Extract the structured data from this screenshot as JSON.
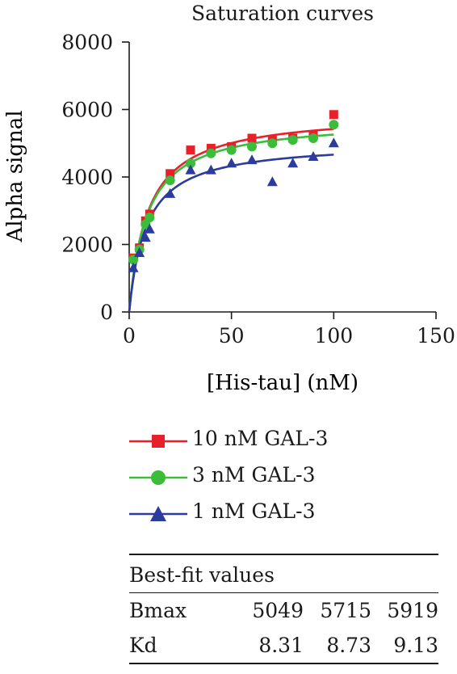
{
  "chart_data": {
    "type": "scatter",
    "title": "Saturation curves",
    "xlabel": "[His-tau] (nM)",
    "ylabel": "Alpha signal",
    "xlim": [
      0,
      150
    ],
    "ylim": [
      0,
      8000
    ],
    "xticks": [
      "0",
      "50",
      "100",
      "150"
    ],
    "yticks": [
      "0",
      "2000",
      "4000",
      "6000",
      "8000"
    ],
    "grid": false,
    "legend_position": "below",
    "series": [
      {
        "name": "10 nM GAL-3",
        "color": "#e8202a",
        "marker": "square",
        "x": [
          2,
          5,
          8,
          10,
          20,
          30,
          40,
          50,
          60,
          70,
          80,
          90,
          100
        ],
        "y": [
          1600,
          1900,
          2700,
          2900,
          4100,
          4800,
          4850,
          4900,
          5150,
          5100,
          5150,
          5250,
          5850
        ],
        "fit": {
          "Bmax": 5919,
          "Kd": 9.13
        }
      },
      {
        "name": "3 nM GAL-3",
        "color": "#3bbd3b",
        "marker": "circle",
        "x": [
          2,
          5,
          8,
          10,
          20,
          30,
          40,
          50,
          60,
          70,
          80,
          90,
          100
        ],
        "y": [
          1550,
          1850,
          2600,
          2800,
          3900,
          4400,
          4700,
          4800,
          4900,
          5000,
          5100,
          5150,
          5550
        ],
        "fit": {
          "Bmax": 5715,
          "Kd": 8.73
        }
      },
      {
        "name": "1 nM GAL-3",
        "color": "#2b3b9e",
        "marker": "triangle",
        "x": [
          2,
          5,
          8,
          10,
          20,
          30,
          40,
          50,
          60,
          70,
          80,
          90,
          100
        ],
        "y": [
          1300,
          1750,
          2200,
          2450,
          3500,
          4200,
          4200,
          4400,
          4500,
          3850,
          4400,
          4600,
          5000
        ],
        "fit": {
          "Bmax": 5049,
          "Kd": 8.31
        }
      }
    ]
  },
  "table": {
    "header": "Best-fit values",
    "rows": [
      {
        "label": "Bmax",
        "values": [
          "5049",
          "5715",
          "5919"
        ]
      },
      {
        "label": "Kd",
        "values": [
          "8.31",
          "8.73",
          "9.13"
        ]
      }
    ]
  }
}
